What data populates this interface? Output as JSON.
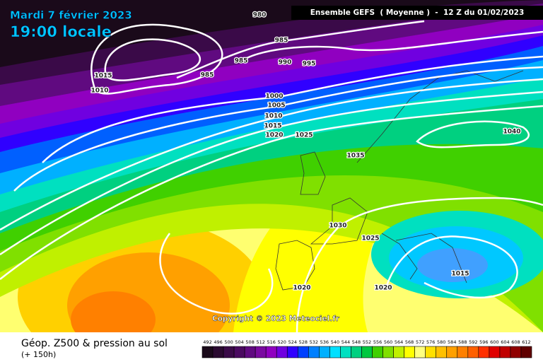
{
  "header": {
    "date": "Mardi 7 février 2023",
    "time": "19:00 locale",
    "run": "Ensemble GEFS  ( Moyenne )  -  12 Z du 01/02/2023"
  },
  "map": {
    "isobar_labels": [
      980,
      985,
      985,
      985,
      990,
      995,
      1015,
      1010,
      1000,
      1005,
      1010,
      1015,
      1020,
      1025,
      1035,
      1040,
      1030,
      1025,
      1015,
      1020,
      1020
    ],
    "copyright": "Copyright © 2023 Meteociel.fr"
  },
  "footer": {
    "title": "Géop. Z500 & pression au sol",
    "subtitle": "(+ 150h)",
    "scale": {
      "values": [
        492,
        496,
        500,
        504,
        508,
        512,
        516,
        520,
        524,
        528,
        532,
        536,
        540,
        544,
        548,
        552,
        556,
        560,
        564,
        568,
        572,
        576,
        580,
        584,
        588,
        592,
        596,
        600,
        604,
        608,
        612
      ],
      "colors": [
        "#1a0a1a",
        "#2a0a30",
        "#3a0a48",
        "#4a0a60",
        "#600a80",
        "#7a0aa0",
        "#9000c0",
        "#7000e0",
        "#3000ff",
        "#0040ff",
        "#0080ff",
        "#00b0ff",
        "#00e0ff",
        "#00e0c0",
        "#00d080",
        "#00c840",
        "#40d000",
        "#80e000",
        "#c0f000",
        "#ffff00",
        "#ffff80",
        "#ffe000",
        "#ffc000",
        "#ffa000",
        "#ff8000",
        "#ff6000",
        "#ff3000",
        "#e00000",
        "#c00000",
        "#900000",
        "#600000"
      ]
    }
  }
}
